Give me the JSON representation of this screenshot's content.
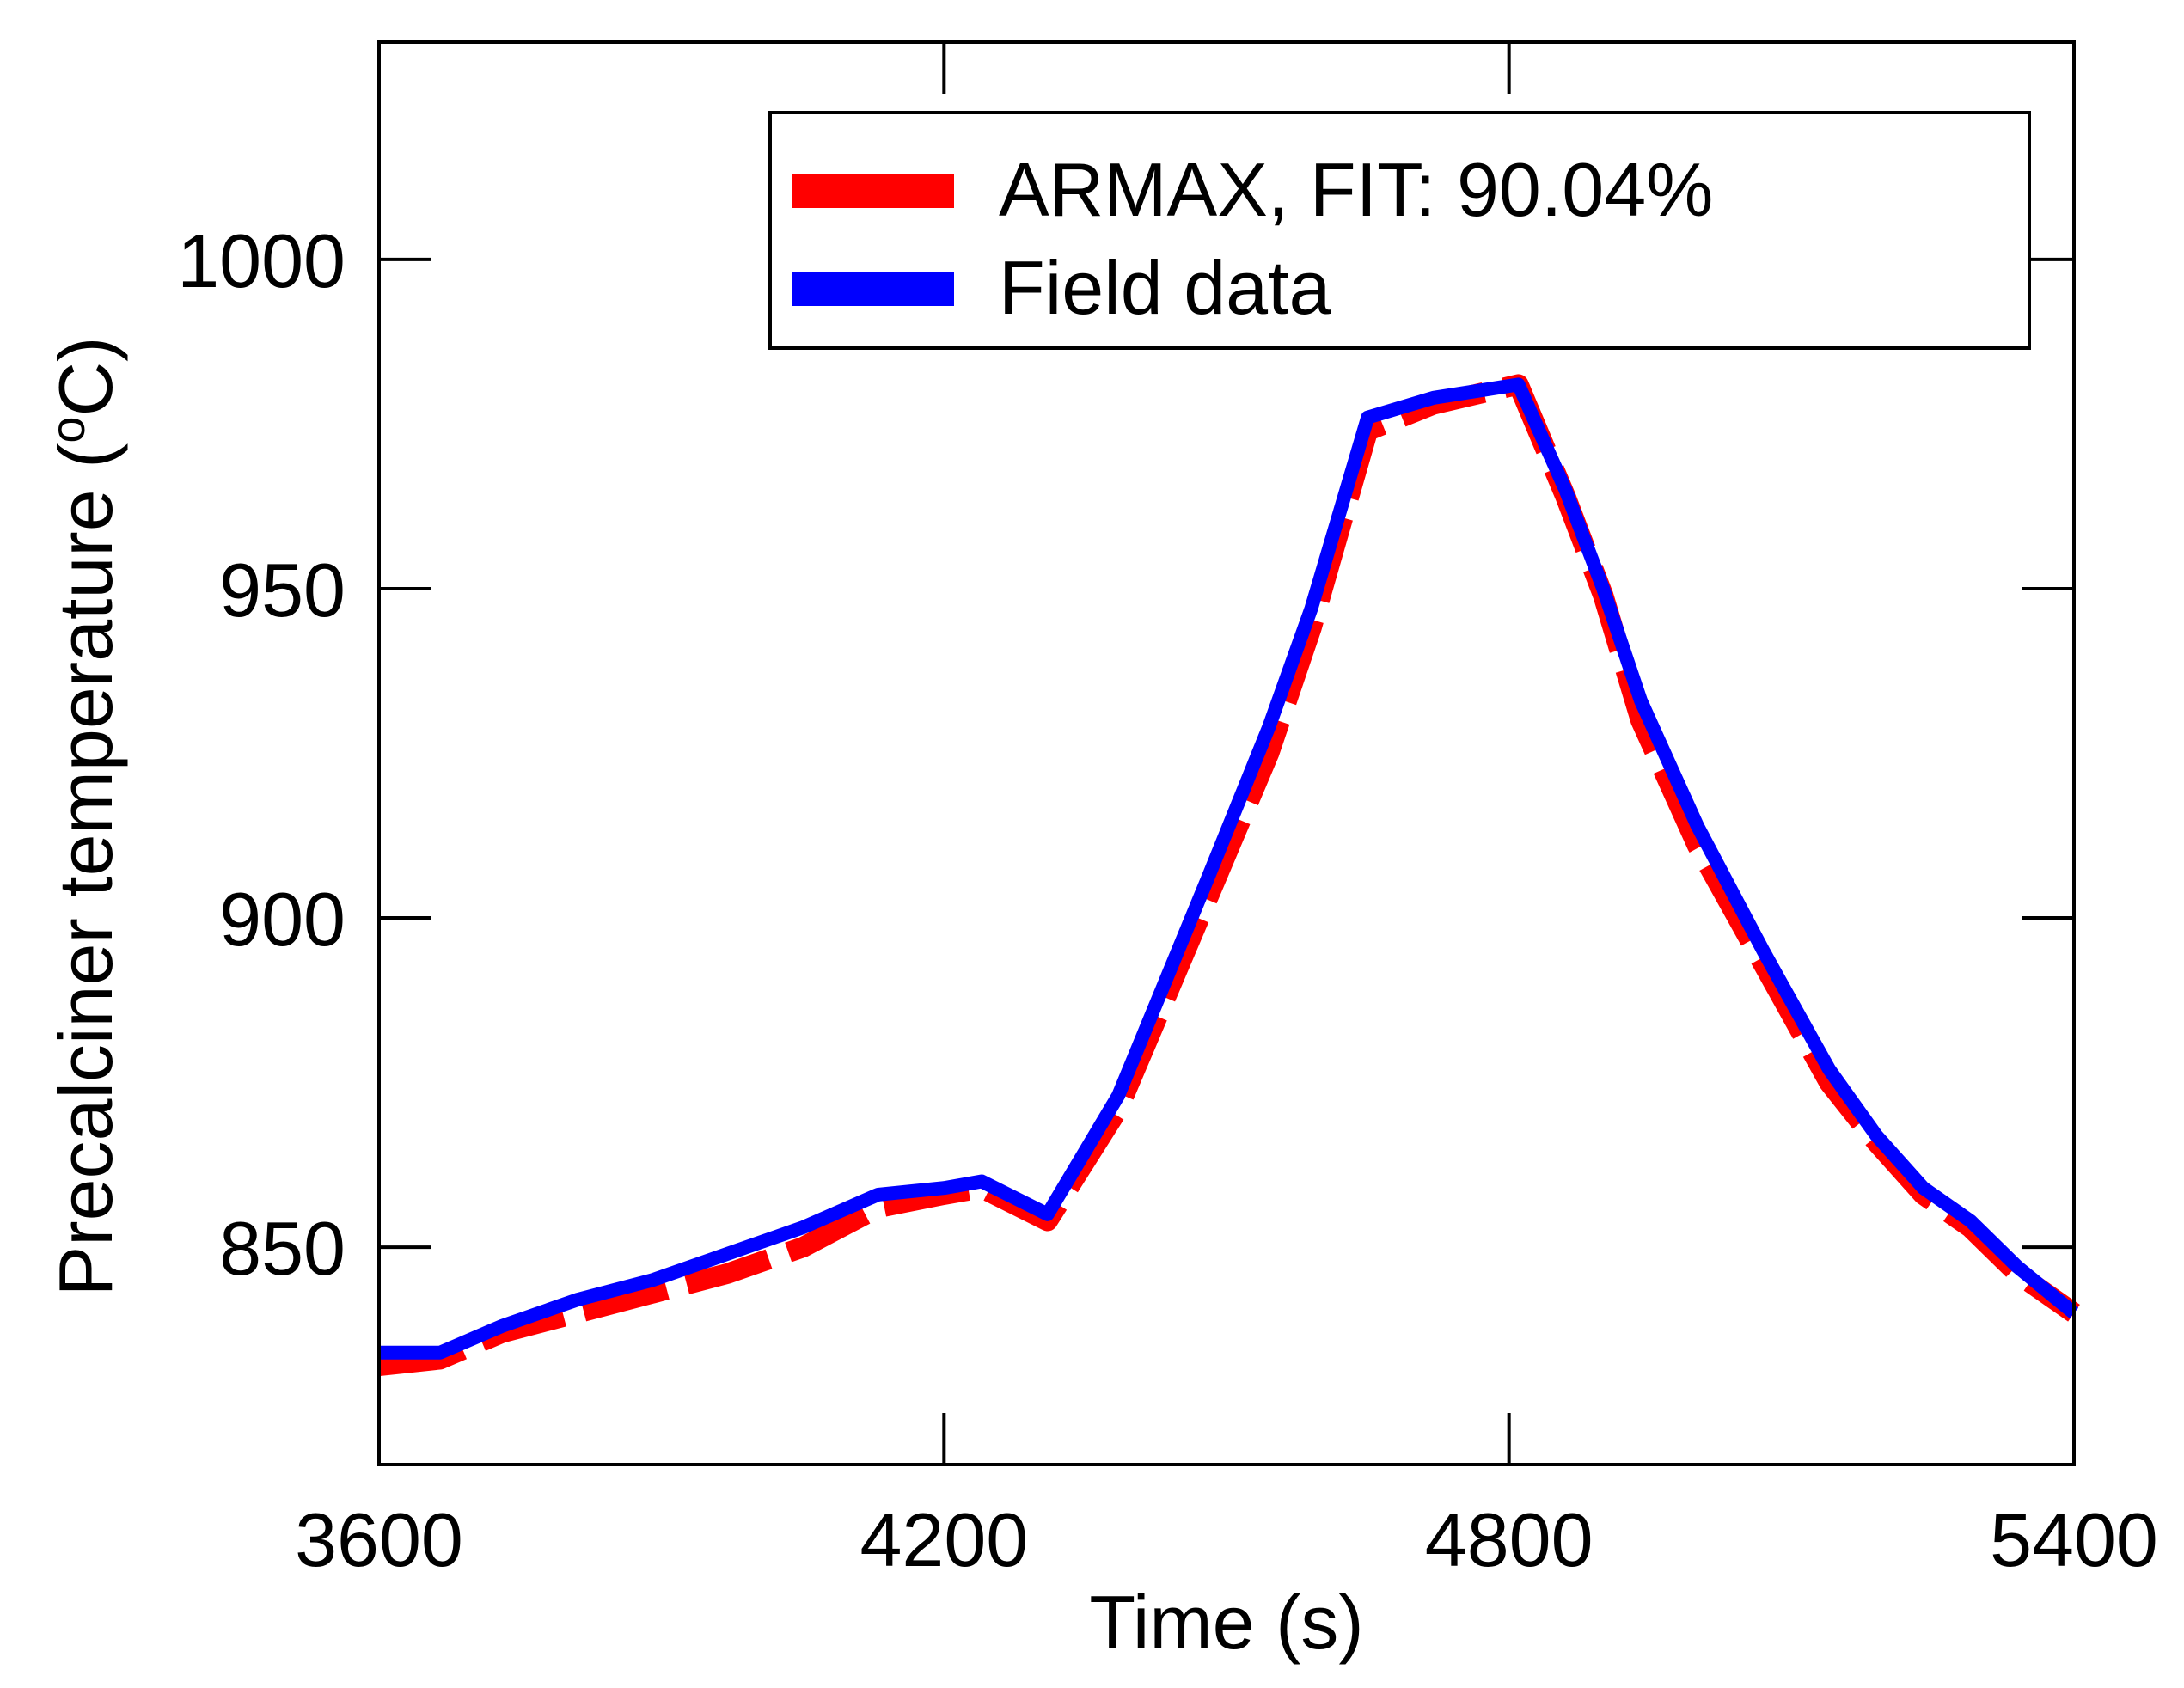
{
  "chart_data": {
    "type": "line",
    "title": "",
    "xlabel": "Time (s)",
    "ylabel": "Precalciner temperature (",
    "ylabel_sup": "o",
    "ylabel_unit": "C)",
    "xlim": [
      3600,
      5400
    ],
    "ylim": [
      817,
      1033
    ],
    "xticks": [
      3600,
      4200,
      4800,
      5400
    ],
    "yticks": [
      850,
      900,
      950,
      1000
    ],
    "xtick_labels": [
      "3600",
      "4200",
      "4800",
      "5400"
    ],
    "ytick_labels": [
      "850",
      "900",
      "950",
      "1000"
    ],
    "grid": false,
    "legend_position": "top-right",
    "series": [
      {
        "name": "ARMAX, FIT: 90.04%",
        "color": "#ff0000",
        "style": "dashed",
        "x": [
          3600,
          3665,
          3730,
          3810,
          3890,
          3970,
          4050,
          4130,
          4200,
          4240,
          4310,
          4385,
          4480,
          4545,
          4590,
          4650,
          4720,
          4810,
          4860,
          4900,
          4940,
          5000,
          5070,
          5140,
          5190,
          5240,
          5290,
          5340,
          5400
        ],
        "y": [
          832,
          833,
          837,
          840,
          843,
          846,
          850,
          856,
          858,
          859,
          854,
          871,
          903,
          925,
          944,
          974,
          978,
          981,
          964,
          949,
          930,
          911,
          893,
          875,
          866,
          858,
          853,
          846,
          840
        ]
      },
      {
        "name": "Field data",
        "color": "#0000ff",
        "style": "solid",
        "x": [
          3600,
          3665,
          3730,
          3810,
          3890,
          3970,
          4050,
          4130,
          4200,
          4240,
          4310,
          4385,
          4480,
          4545,
          4590,
          4650,
          4720,
          4810,
          4860,
          4900,
          4940,
          5000,
          5070,
          5140,
          5190,
          5240,
          5290,
          5340,
          5400
        ],
        "y": [
          834,
          834,
          838,
          842,
          845,
          849,
          853,
          858,
          859,
          860,
          855,
          873,
          906,
          929,
          947,
          976,
          979,
          981,
          965,
          950,
          933,
          914,
          895,
          877,
          867,
          859,
          854,
          847,
          840
        ]
      }
    ]
  }
}
